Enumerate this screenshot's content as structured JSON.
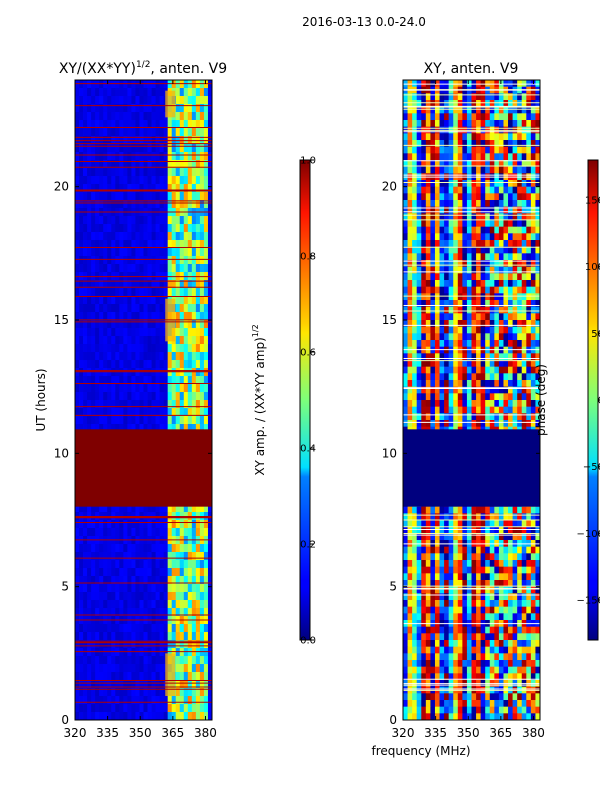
{
  "suptitle": "2016-03-13 0.0-24.0",
  "chart_data": [
    {
      "type": "heatmap",
      "title": "XY/(XX*YY)",
      "title_exponent": "1/2",
      "title_suffix": ", anten. V9",
      "xlabel": "",
      "ylabel": "UT (hours)",
      "xlim": [
        320,
        383
      ],
      "ylim": [
        0,
        24
      ],
      "xticks": [
        320,
        335,
        350,
        365,
        380
      ],
      "yticks": [
        0,
        5,
        10,
        15,
        20
      ],
      "colorbar": {
        "label": "XY amp. / (XX*YY amp)",
        "label_exponent": "1/2",
        "range": [
          0.0,
          1.0
        ],
        "ticks": [
          "0.0",
          "0.2",
          "0.4",
          "0.6",
          "0.8",
          "1.0"
        ],
        "tick_values": [
          0.0,
          0.2,
          0.4,
          0.6,
          0.8,
          1.0
        ]
      },
      "saturated_block_hours": [
        8.0,
        10.9
      ],
      "band_start_mhz": 361.5
    },
    {
      "type": "heatmap",
      "title": "XY, anten. V9",
      "xlabel": "frequency (MHz)",
      "ylabel": "",
      "xlim": [
        320,
        383
      ],
      "ylim": [
        0,
        24
      ],
      "xticks": [
        320,
        335,
        350,
        365,
        380
      ],
      "yticks": [
        0,
        5,
        10,
        15,
        20
      ],
      "colorbar": {
        "label": "phase (deg)",
        "range": [
          -180,
          180
        ],
        "ticks": [
          "−150",
          "−100",
          "−50",
          "0",
          "50",
          "100",
          "150"
        ],
        "tick_values": [
          -150,
          -100,
          -50,
          0,
          50,
          100,
          150
        ]
      },
      "masked_block_hours": [
        8.0,
        10.9
      ]
    }
  ]
}
